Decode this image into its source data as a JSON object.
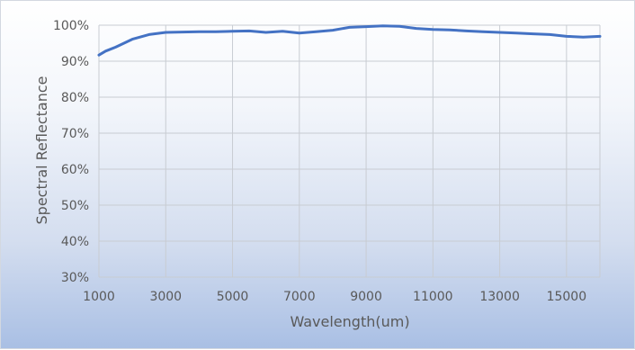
{
  "chart_data": {
    "type": "line",
    "title": "",
    "xlabel": "Wavelength(um)",
    "ylabel": "Spectral Reflectance",
    "xlim": [
      1000,
      16000
    ],
    "ylim": [
      30,
      100
    ],
    "x_ticks": [
      1000,
      3000,
      5000,
      7000,
      9000,
      11000,
      13000,
      15000
    ],
    "x_tick_labels": [
      "1000",
      "3000",
      "5000",
      "7000",
      "9000",
      "11000",
      "13000",
      "15000"
    ],
    "y_ticks": [
      30,
      40,
      50,
      60,
      70,
      80,
      90,
      100
    ],
    "y_tick_labels": [
      "30%",
      "40%",
      "50%",
      "60%",
      "70%",
      "80%",
      "90%",
      "100%"
    ],
    "grid": true,
    "legend": "none",
    "series": [
      {
        "color": "#4472c4",
        "x": [
          1000,
          1200,
          1500,
          2000,
          2500,
          3000,
          3500,
          4000,
          4500,
          5000,
          5500,
          6000,
          6500,
          7000,
          7500,
          8000,
          8500,
          9000,
          9500,
          10000,
          10500,
          11000,
          11500,
          12000,
          12500,
          13000,
          13500,
          14000,
          14500,
          15000,
          15500,
          16000
        ],
        "y": [
          91.7,
          92.8,
          93.9,
          96.1,
          97.4,
          98.0,
          98.1,
          98.2,
          98.2,
          98.3,
          98.4,
          98.0,
          98.3,
          97.8,
          98.2,
          98.6,
          99.4,
          99.6,
          99.8,
          99.7,
          99.1,
          98.8,
          98.7,
          98.4,
          98.2,
          98.0,
          97.8,
          97.6,
          97.4,
          96.9,
          96.7,
          96.9
        ]
      }
    ]
  }
}
